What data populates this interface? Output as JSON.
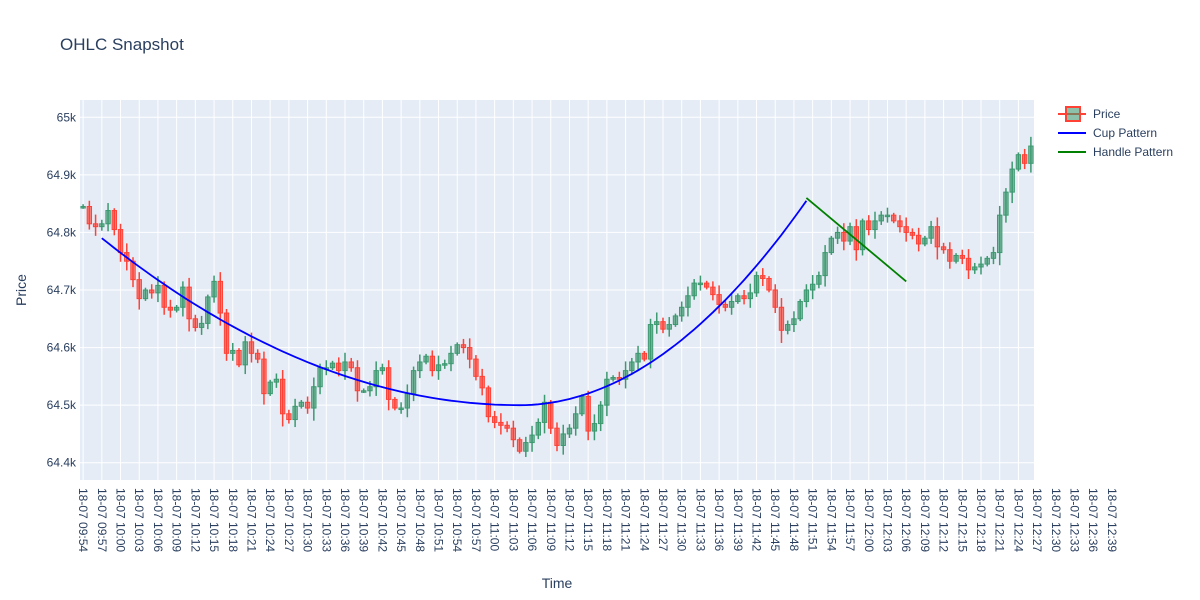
{
  "chart_data": {
    "type": "ohlc-candlestick",
    "title": "OHLC Snapshot",
    "xlabel": "Time",
    "ylabel": "Price",
    "ylim": [
      64370,
      65030
    ],
    "y_ticks": [
      64400,
      64500,
      64600,
      64700,
      64800,
      64900,
      65000
    ],
    "y_tick_labels": [
      "64.4k",
      "64.5k",
      "64.6k",
      "64.7k",
      "64.8k",
      "64.9k",
      "65k"
    ],
    "x_start": "09:54",
    "x_interval_min": 1,
    "x_ticks": [
      "18-07 09:54",
      "18-07 09:57",
      "18-07 10:00",
      "18-07 10:03",
      "18-07 10:06",
      "18-07 10:09",
      "18-07 10:12",
      "18-07 10:15",
      "18-07 10:18",
      "18-07 10:21",
      "18-07 10:24",
      "18-07 10:27",
      "18-07 10:30",
      "18-07 10:33",
      "18-07 10:36",
      "18-07 10:39",
      "18-07 10:42",
      "18-07 10:45",
      "18-07 10:48",
      "18-07 10:51",
      "18-07 10:54",
      "18-07 10:57",
      "18-07 11:00",
      "18-07 11:03",
      "18-07 11:06",
      "18-07 11:09",
      "18-07 11:12",
      "18-07 11:15",
      "18-07 11:18",
      "18-07 11:21",
      "18-07 11:24",
      "18-07 11:27",
      "18-07 11:30",
      "18-07 11:33",
      "18-07 11:36",
      "18-07 11:39",
      "18-07 11:42",
      "18-07 11:45",
      "18-07 11:48",
      "18-07 11:51",
      "18-07 11:54",
      "18-07 11:57",
      "18-07 12:00",
      "18-07 12:03",
      "18-07 12:06",
      "18-07 12:09",
      "18-07 12:12",
      "18-07 12:15",
      "18-07 12:18",
      "18-07 12:21",
      "18-07 12:24",
      "18-07 12:27",
      "18-07 12:30",
      "18-07 12:33",
      "18-07 12:36",
      "18-07 12:39"
    ],
    "close": [
      64845,
      64815,
      64810,
      64815,
      64838,
      64805,
      64765,
      64750,
      64718,
      64685,
      64700,
      64695,
      64708,
      64670,
      64665,
      64670,
      64705,
      64650,
      64635,
      64642,
      64688,
      64715,
      64660,
      64590,
      64595,
      64570,
      64610,
      64590,
      64580,
      64520,
      64540,
      64545,
      64485,
      64475,
      64498,
      64505,
      64495,
      64532,
      64565,
      64565,
      64573,
      64560,
      64575,
      64565,
      64525,
      64525,
      64532,
      64560,
      64565,
      64510,
      64495,
      64495,
      64520,
      64560,
      64575,
      64585,
      64560,
      64570,
      64572,
      64590,
      64605,
      64600,
      64580,
      64550,
      64530,
      64480,
      64470,
      64465,
      64460,
      64440,
      64420,
      64435,
      64448,
      64470,
      64505,
      64460,
      64430,
      64450,
      64460,
      64485,
      64515,
      64455,
      64468,
      64500,
      64545,
      64548,
      64545,
      64560,
      64575,
      64590,
      64580,
      64640,
      64645,
      64632,
      64640,
      64655,
      64670,
      64690,
      64712,
      64712,
      64705,
      64692,
      64675,
      64670,
      64680,
      64690,
      64685,
      64695,
      64725,
      64720,
      64700,
      64670,
      64630,
      64640,
      64650,
      64680,
      64700,
      64710,
      64725,
      64765,
      64790,
      64800,
      64785,
      64810,
      64770,
      64820,
      64805,
      64820,
      64830,
      64830,
      64820,
      64810,
      64800,
      64795,
      64780,
      64790,
      64810,
      64775,
      64770,
      64750,
      64760,
      64755,
      64735,
      64740,
      64745,
      64755,
      64765,
      64830,
      64870,
      64910,
      64935,
      64920,
      64950
    ]
  },
  "legend": {
    "price": "Price",
    "cup": "Cup Pattern",
    "handle": "Handle Pattern"
  },
  "colors": {
    "increasing": "#3d9970",
    "decreasing": "#ff4136",
    "cup": "#0000ff",
    "handle": "#008000",
    "plot_bg": "#e5ecf6",
    "grid": "#ffffff"
  }
}
